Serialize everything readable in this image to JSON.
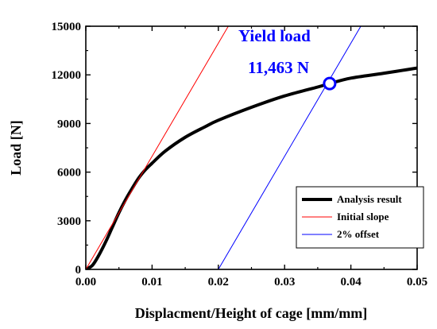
{
  "chart_data": {
    "type": "line",
    "xlabel": "Displacment/Height of cage [mm/mm]",
    "ylabel": "Load [N]",
    "xlim": [
      0,
      0.05
    ],
    "ylim": [
      0,
      15000
    ],
    "xticks": [
      0.0,
      0.01,
      0.02,
      0.03,
      0.04,
      0.05
    ],
    "xtick_labels": [
      "0.00",
      "0.01",
      "0.02",
      "0.03",
      "0.04",
      "0.05"
    ],
    "yticks": [
      0,
      3000,
      6000,
      9000,
      12000,
      15000
    ],
    "ytick_labels": [
      "0",
      "3000",
      "6000",
      "9000",
      "12000",
      "15000"
    ],
    "grid": false,
    "legend_position": "bottom-right",
    "series": [
      {
        "name": "Analysis result",
        "color": "#000000",
        "x": [
          0.0,
          0.001,
          0.002,
          0.003,
          0.004,
          0.005,
          0.006,
          0.007,
          0.008,
          0.009,
          0.01,
          0.012,
          0.015,
          0.018,
          0.02,
          0.025,
          0.03,
          0.035,
          0.0368,
          0.04,
          0.045,
          0.05
        ],
        "y": [
          0,
          250,
          900,
          1700,
          2600,
          3500,
          4300,
          5000,
          5650,
          6150,
          6550,
          7300,
          8150,
          8800,
          9200,
          10000,
          10700,
          11250,
          11463,
          11800,
          12100,
          12420
        ]
      },
      {
        "name": "Initial slope",
        "color": "#ff0000",
        "x": [
          0.0,
          0.0215
        ],
        "y": [
          0,
          15000
        ]
      },
      {
        "name": "2% offset",
        "color": "#0000ff",
        "x": [
          0.02,
          0.0415
        ],
        "y": [
          0,
          15000
        ]
      }
    ],
    "yield_point": {
      "x": 0.0368,
      "y": 11463,
      "color": "#0000ff"
    },
    "annotations": [
      {
        "text": "Yield  load",
        "color": "#0000ff"
      },
      {
        "text": "11,463  N",
        "color": "#0000ff"
      }
    ]
  }
}
